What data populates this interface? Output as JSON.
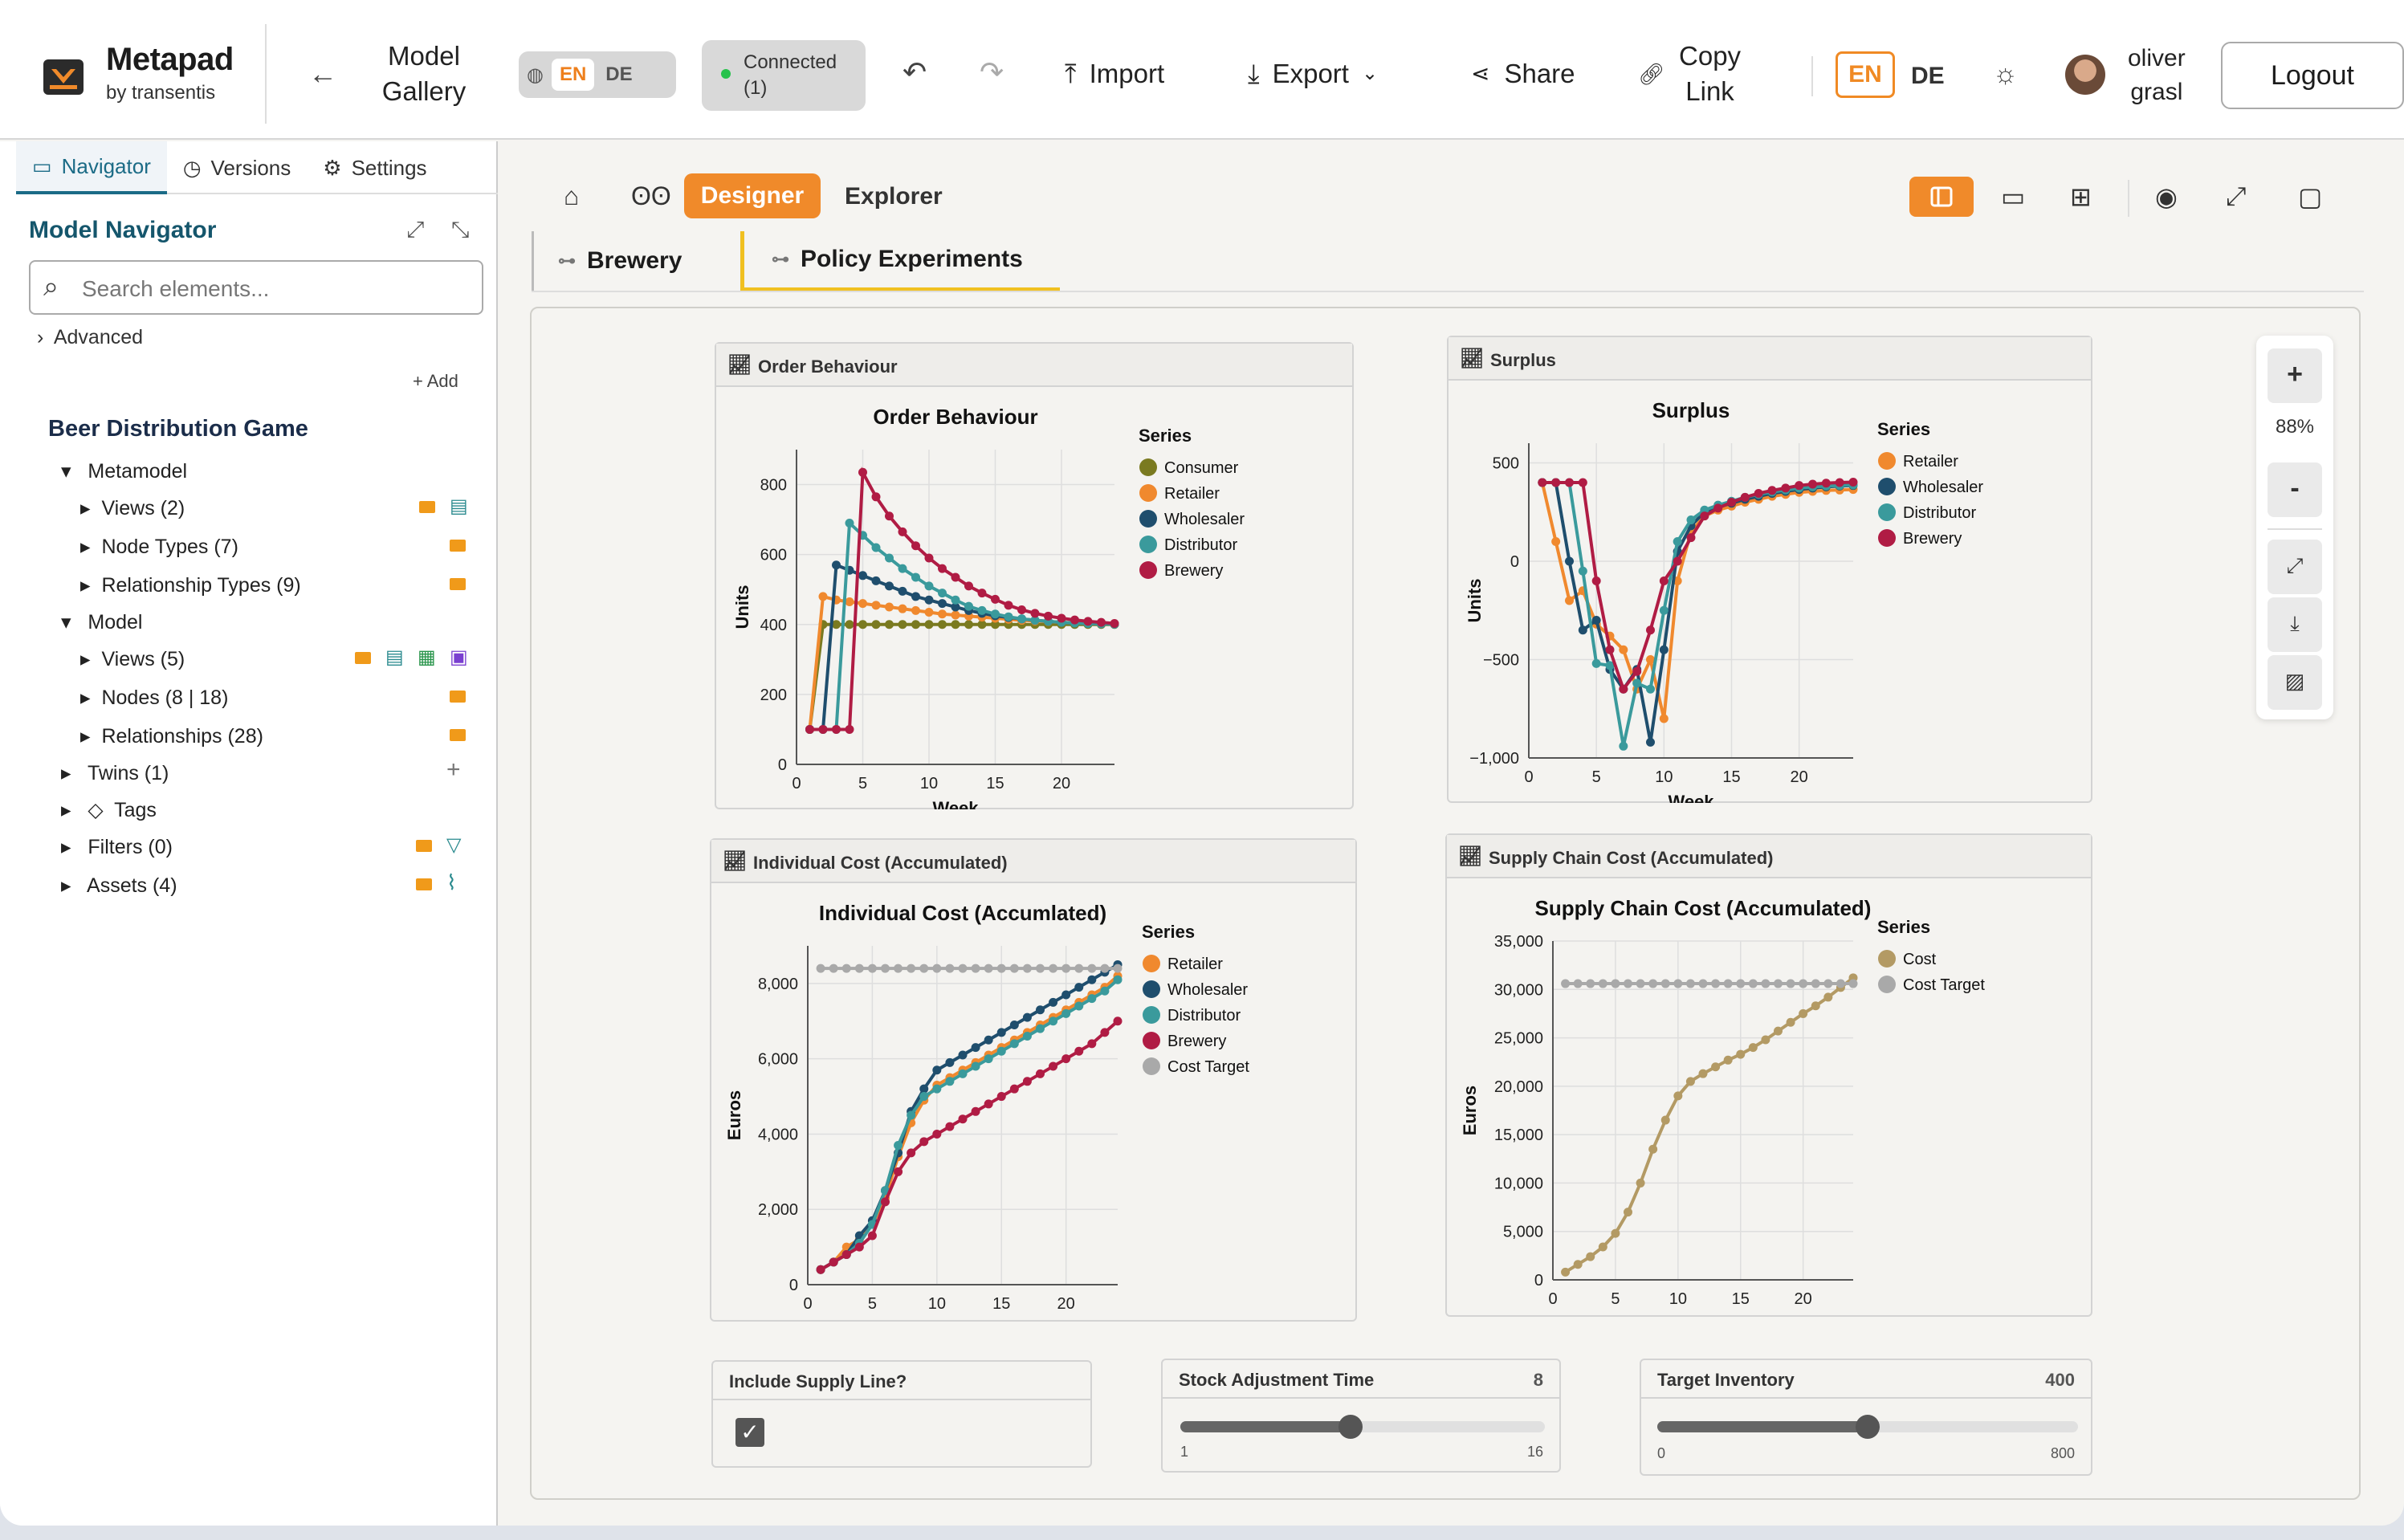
{
  "header": {
    "brand": "Metapad",
    "brand_sub": "by transentis",
    "model_gallery": [
      "Model",
      "Gallery"
    ],
    "lang": {
      "en": "EN",
      "de": "DE"
    },
    "connected": [
      "Connected",
      "(1)"
    ],
    "import": "Import",
    "export": "Export",
    "share": "Share",
    "copy_link": [
      "Copy",
      "Link"
    ],
    "user": [
      "oliver",
      "grasl"
    ],
    "logout": "Logout"
  },
  "sidebar": {
    "tabs": [
      "Navigator",
      "Versions",
      "Settings"
    ],
    "title": "Model Navigator",
    "search_placeholder": "Search elements...",
    "advanced": "Advanced",
    "add": "+ Add",
    "root": "Beer Distribution Game",
    "metamodel": "Metamodel",
    "mm_items": [
      "Views (2)",
      "Node Types (7)",
      "Relationship Types (9)"
    ],
    "model": "Model",
    "model_items": [
      "Views (5)",
      "Nodes (8 | 18)",
      "Relationships (28)"
    ],
    "twins": "Twins (1)",
    "tags": "Tags",
    "filters": "Filters (0)",
    "assets": "Assets (4)"
  },
  "toolbar": {
    "designer": "Designer",
    "explorer": "Explorer"
  },
  "tabs": [
    "Brewery",
    "Policy Experiments"
  ],
  "zoom": {
    "level": "88%",
    "plus": "+",
    "minus": "-"
  },
  "colors": {
    "consumer": "#7a7a20",
    "retailer": "#f0892e",
    "wholesaler": "#1f4e6d",
    "distributor": "#3a9a9c",
    "brewery": "#b01c44",
    "target": "#a9a9a9",
    "cost": "#b39a64",
    "accent": "#f08a2a"
  },
  "controls": {
    "supply_line": {
      "label": "Include Supply Line?",
      "checked": true
    },
    "stock_adj": {
      "label": "Stock Adjustment Time",
      "value": "8",
      "min": "1",
      "max": "16",
      "fraction": 0.467
    },
    "target_inv": {
      "label": "Target Inventory",
      "value": "400",
      "min": "0",
      "max": "800",
      "fraction": 0.5
    }
  },
  "chart_data": [
    {
      "type": "line",
      "panel_title": "Order Behaviour",
      "title": "Order Behaviour",
      "xlabel": "Week",
      "ylabel": "Units",
      "xlim": [
        0,
        24
      ],
      "ylim": [
        0,
        900
      ],
      "xticks": [
        0,
        5,
        10,
        15,
        20
      ],
      "yticks": [
        0,
        200,
        400,
        600,
        800
      ],
      "ytick_labels": [
        "0",
        "200",
        "400",
        "600",
        "800"
      ],
      "legend_title": "Series",
      "series": [
        {
          "name": "Consumer",
          "color": "consumer",
          "values": [
            100,
            400,
            400,
            400,
            400,
            400,
            400,
            400,
            400,
            400,
            400,
            400,
            400,
            400,
            400,
            400,
            400,
            400,
            400,
            400,
            400,
            400,
            400,
            400
          ]
        },
        {
          "name": "Retailer",
          "color": "retailer",
          "values": [
            100,
            480,
            470,
            465,
            460,
            455,
            450,
            445,
            440,
            435,
            430,
            427,
            424,
            421,
            418,
            415,
            412,
            410,
            408,
            406,
            405,
            404,
            403,
            402
          ]
        },
        {
          "name": "Wholesaler",
          "color": "wholesaler",
          "values": [
            100,
            100,
            570,
            555,
            540,
            525,
            510,
            495,
            480,
            470,
            460,
            450,
            440,
            432,
            425,
            420,
            416,
            412,
            409,
            406,
            404,
            403,
            402,
            401
          ]
        },
        {
          "name": "Distributor",
          "color": "distributor",
          "values": [
            100,
            100,
            100,
            690,
            655,
            620,
            590,
            560,
            535,
            510,
            490,
            470,
            452,
            440,
            430,
            422,
            416,
            412,
            409,
            406,
            404,
            403,
            402,
            401
          ]
        },
        {
          "name": "Brewery",
          "color": "brewery",
          "values": [
            100,
            100,
            100,
            100,
            835,
            765,
            710,
            665,
            625,
            590,
            560,
            535,
            510,
            490,
            472,
            455,
            442,
            432,
            424,
            418,
            413,
            409,
            406,
            403
          ]
        }
      ]
    },
    {
      "type": "line",
      "panel_title": "Surplus",
      "title": "Surplus",
      "xlabel": "Week",
      "ylabel": "Units",
      "xlim": [
        0,
        24
      ],
      "ylim": [
        -1000,
        600
      ],
      "xticks": [
        0,
        5,
        10,
        15,
        20
      ],
      "yticks": [
        -1000,
        -500,
        0,
        500
      ],
      "ytick_labels": [
        "−1,000",
        "−500",
        "0",
        "500"
      ],
      "legend_title": "Series",
      "series": [
        {
          "name": "Retailer",
          "color": "retailer",
          "values": [
            400,
            100,
            -200,
            -150,
            -320,
            -380,
            -450,
            -650,
            -500,
            -800,
            -100,
            150,
            230,
            260,
            280,
            300,
            315,
            330,
            340,
            350,
            355,
            360,
            362,
            365
          ]
        },
        {
          "name": "Wholesaler",
          "color": "wholesaler",
          "values": [
            400,
            400,
            0,
            -350,
            -300,
            -550,
            -650,
            -550,
            -920,
            -450,
            50,
            180,
            250,
            275,
            295,
            315,
            330,
            345,
            355,
            365,
            372,
            378,
            382,
            385
          ]
        },
        {
          "name": "Distributor",
          "color": "distributor",
          "values": [
            400,
            400,
            400,
            -50,
            -520,
            -530,
            -940,
            -620,
            -650,
            -250,
            100,
            210,
            260,
            285,
            305,
            325,
            340,
            352,
            362,
            372,
            378,
            382,
            385,
            388
          ]
        },
        {
          "name": "Brewery",
          "color": "brewery",
          "values": [
            400,
            400,
            400,
            400,
            -100,
            -450,
            -650,
            -560,
            -350,
            -100,
            0,
            120,
            230,
            270,
            300,
            325,
            345,
            360,
            372,
            385,
            392,
            397,
            400,
            402
          ]
        }
      ]
    },
    {
      "type": "line",
      "panel_title": "Individual Cost (Accumulated)",
      "title": "Individual Cost (Accumlated)",
      "xlabel": "Week",
      "ylabel": "Euros",
      "xlim": [
        0,
        24
      ],
      "ylim": [
        0,
        9000
      ],
      "xticks": [
        0,
        5,
        10,
        15,
        20
      ],
      "yticks": [
        0,
        2000,
        4000,
        6000,
        8000
      ],
      "ytick_labels": [
        "0",
        "2,000",
        "4,000",
        "6,000",
        "8,000"
      ],
      "legend_title": "Series",
      "series": [
        {
          "name": "Retailer",
          "color": "retailer",
          "values": [
            400,
            600,
            1000,
            1200,
            1600,
            2300,
            3400,
            4300,
            4900,
            5300,
            5500,
            5700,
            5900,
            6100,
            6300,
            6500,
            6700,
            6900,
            7100,
            7300,
            7500,
            7700,
            7900,
            8200
          ]
        },
        {
          "name": "Wholesaler",
          "color": "wholesaler",
          "values": [
            400,
            600,
            800,
            1300,
            1700,
            2500,
            3500,
            4600,
            5200,
            5700,
            5900,
            6100,
            6300,
            6500,
            6700,
            6900,
            7100,
            7300,
            7500,
            7700,
            7900,
            8100,
            8300,
            8500
          ]
        },
        {
          "name": "Distributor",
          "color": "distributor",
          "values": [
            400,
            600,
            800,
            1100,
            1600,
            2500,
            3700,
            4500,
            5000,
            5200,
            5400,
            5600,
            5800,
            6000,
            6200,
            6400,
            6600,
            6800,
            7000,
            7200,
            7400,
            7600,
            7800,
            8100
          ]
        },
        {
          "name": "Brewery",
          "color": "brewery",
          "values": [
            400,
            600,
            800,
            1000,
            1300,
            2200,
            3000,
            3500,
            3800,
            4000,
            4200,
            4400,
            4600,
            4800,
            5000,
            5200,
            5400,
            5600,
            5800,
            6000,
            6200,
            6400,
            6700,
            7000
          ]
        },
        {
          "name": "Cost Target",
          "color": "target",
          "values": [
            8400,
            8400,
            8400,
            8400,
            8400,
            8400,
            8400,
            8400,
            8400,
            8400,
            8400,
            8400,
            8400,
            8400,
            8400,
            8400,
            8400,
            8400,
            8400,
            8400,
            8400,
            8400,
            8400,
            8400
          ]
        }
      ]
    },
    {
      "type": "line",
      "panel_title": "Supply Chain Cost (Accumulated)",
      "title": "Supply Chain Cost (Accumulated)",
      "xlabel": "Week",
      "ylabel": "Euros",
      "xlim": [
        0,
        24
      ],
      "ylim": [
        0,
        35000
      ],
      "xticks": [
        0,
        5,
        10,
        15,
        20
      ],
      "yticks": [
        0,
        5000,
        10000,
        15000,
        20000,
        25000,
        30000,
        35000
      ],
      "ytick_labels": [
        "0",
        "5,000",
        "10,000",
        "15,000",
        "20,000",
        "25,000",
        "30,000",
        "35,000"
      ],
      "legend_title": "Series",
      "series": [
        {
          "name": "Cost",
          "color": "cost",
          "values": [
            800,
            1600,
            2400,
            3400,
            4800,
            7000,
            10000,
            13500,
            16500,
            19000,
            20500,
            21300,
            22000,
            22700,
            23300,
            24000,
            24800,
            25700,
            26600,
            27500,
            28300,
            29200,
            30200,
            31200
          ]
        },
        {
          "name": "Cost Target",
          "color": "target",
          "values": [
            30600,
            30600,
            30600,
            30600,
            30600,
            30600,
            30600,
            30600,
            30600,
            30600,
            30600,
            30600,
            30600,
            30600,
            30600,
            30600,
            30600,
            30600,
            30600,
            30600,
            30600,
            30600,
            30600,
            30600
          ]
        }
      ]
    }
  ]
}
